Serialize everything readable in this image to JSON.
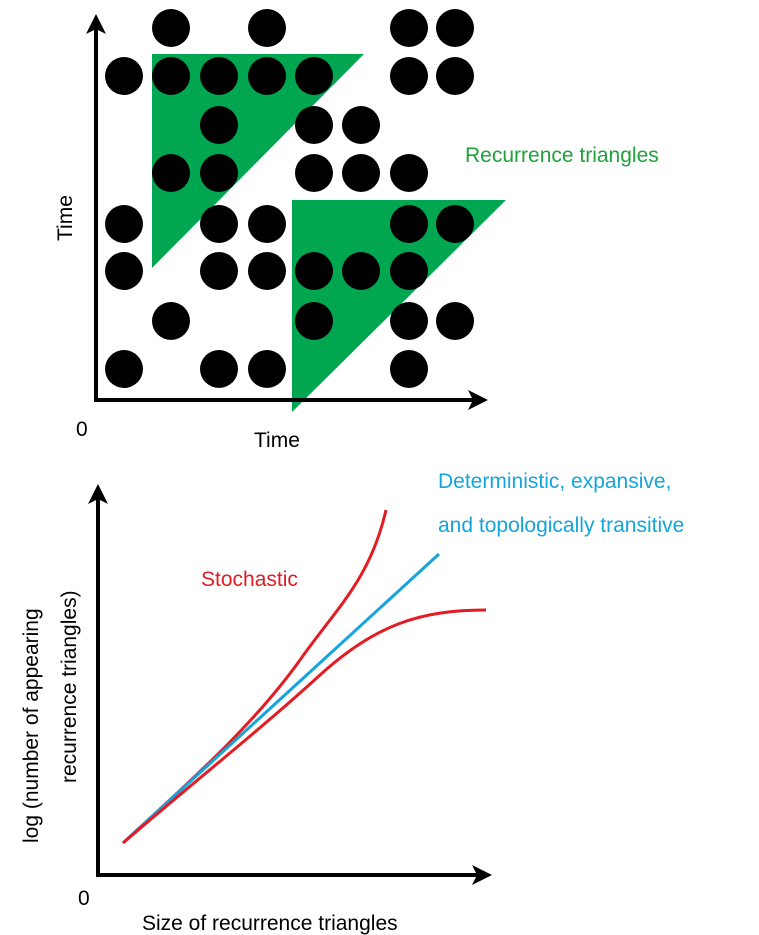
{
  "top_panel": {
    "origin_label": "0",
    "x_axis_label": "Time",
    "y_axis_label": "Time",
    "triangles_label": "Recurrence triangles",
    "colors": {
      "triangles": "#00a650",
      "points": "#000000",
      "triangles_label": "#1fa23a"
    }
  },
  "bottom_panel": {
    "origin_label": "0",
    "x_axis_label": "Size of recurrence triangles",
    "y_axis_label_line1": "log (number of appearing",
    "y_axis_label_line2": "recurrence triangles)",
    "deterministic_label_line1": "Deterministic, expansive,",
    "deterministic_label_line2": "and topologically transitive",
    "stochastic_label": "Stochastic",
    "colors": {
      "deterministic": "#14a5dc",
      "stochastic": "#e31b23"
    }
  }
}
